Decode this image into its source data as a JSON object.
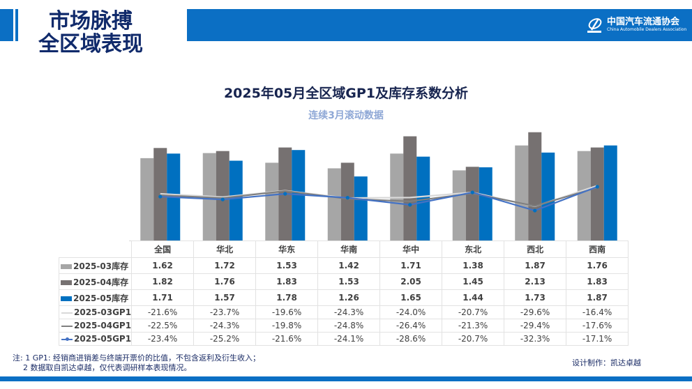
{
  "header": {
    "title_line1": "市场脉搏",
    "title_line2": "全区域表现",
    "logo_cn": "中国汽车流通协会",
    "logo_en": "China Automobile Dealers Association"
  },
  "colors": {
    "brand_blue": "#0b6fc4",
    "title_navy": "#102a6b",
    "inv_2025_03": "#a6a6a6",
    "inv_2025_04": "#767171",
    "inv_2025_05": "#0070c0",
    "gp1_2025_03": "#d9d9d9",
    "gp1_2025_04": "#7f7f7f",
    "gp1_2025_05": "#4472c4"
  },
  "chart_data": {
    "type": "bar",
    "title": "2025年05月全区域GP1及库存系数分析",
    "subtitle": "连续3月滚动数据",
    "categories": [
      "全国",
      "华北",
      "华东",
      "华南",
      "华中",
      "东北",
      "西北",
      "西南"
    ],
    "bar_ylim": [
      0,
      2.4
    ],
    "line_ylim": [
      -60,
      -5
    ],
    "grid": false,
    "legend": "in-table-left",
    "series": [
      {
        "name": "2025-03库存",
        "kind": "bar",
        "color": "#a6a6a6",
        "values": [
          1.62,
          1.72,
          1.53,
          1.42,
          1.71,
          1.38,
          1.87,
          1.76
        ],
        "labels": [
          "1.62",
          "1.72",
          "1.53",
          "1.42",
          "1.71",
          "1.38",
          "1.87",
          "1.76"
        ]
      },
      {
        "name": "2025-04库存",
        "kind": "bar",
        "color": "#767171",
        "values": [
          1.82,
          1.76,
          1.83,
          1.53,
          2.05,
          1.45,
          2.13,
          1.83
        ],
        "labels": [
          "1.82",
          "1.76",
          "1.83",
          "1.53",
          "2.05",
          "1.45",
          "2.13",
          "1.83"
        ]
      },
      {
        "name": "2025-05库存",
        "kind": "bar",
        "color": "#0070c0",
        "values": [
          1.71,
          1.57,
          1.78,
          1.26,
          1.65,
          1.44,
          1.73,
          1.87
        ],
        "labels": [
          "1.71",
          "1.57",
          "1.78",
          "1.26",
          "1.65",
          "1.44",
          "1.73",
          "1.87"
        ]
      },
      {
        "name": "2025-03GP1",
        "kind": "line",
        "color": "#d9d9d9",
        "values": [
          -21.6,
          -23.7,
          -19.6,
          -24.3,
          -24.0,
          -20.7,
          -29.6,
          -16.4
        ],
        "labels": [
          "-21.6%",
          "-23.7%",
          "-19.6%",
          "-24.3%",
          "-24.0%",
          "-20.7%",
          "-29.6%",
          "-16.4%"
        ]
      },
      {
        "name": "2025-04GP1",
        "kind": "line",
        "color": "#7f7f7f",
        "values": [
          -22.5,
          -24.3,
          -19.8,
          -24.8,
          -26.4,
          -21.3,
          -29.4,
          -17.6
        ],
        "labels": [
          "-22.5%",
          "-24.3%",
          "-19.8%",
          "-24.8%",
          "-26.4%",
          "-21.3%",
          "-29.4%",
          "-17.6%"
        ]
      },
      {
        "name": "2025-05GP1",
        "kind": "line",
        "marker": true,
        "color": "#4472c4",
        "values": [
          -23.4,
          -25.2,
          -21.6,
          -24.1,
          -28.6,
          -20.7,
          -32.3,
          -17.1
        ],
        "labels": [
          "-23.4%",
          "-25.2%",
          "-21.6%",
          "-24.1%",
          "-28.6%",
          "-20.7%",
          "-32.3%",
          "-17.1%"
        ]
      }
    ]
  },
  "notes": {
    "line1": "注: 1 GP1: 经销商进销差与终端开票价的比值，不包含返利及衍生收入；",
    "line2": "2 数据取自凯达卓越，仅代表调研样本表现情况。"
  },
  "credit": "设计制作：凯达卓越"
}
